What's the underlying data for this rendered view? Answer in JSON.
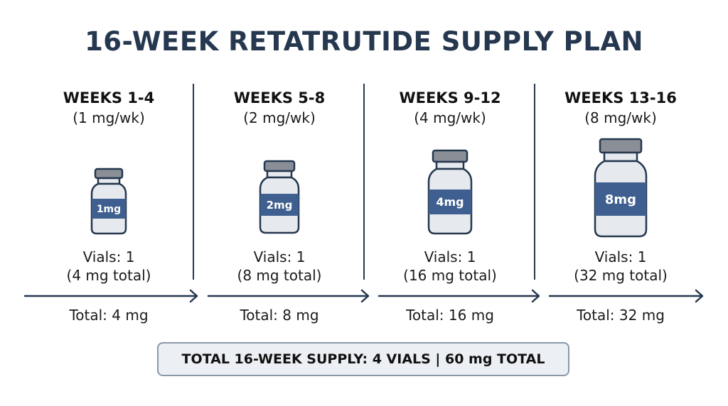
{
  "title": "16-WEEK RETATRUTIDE SUPPLY PLAN",
  "columns": [
    {
      "weeks": "WEEKS 1-4",
      "dose": "(1 mg/wk)",
      "vial_label": "1mg",
      "vials": "Vials: 1",
      "vials_total": "(4 mg total)",
      "total": "Total: 4 mg"
    },
    {
      "weeks": "WEEKS 5-8",
      "dose": "(2 mg/wk)",
      "vial_label": "2mg",
      "vials": "Vials: 1",
      "vials_total": "(8 mg total)",
      "total": "Total: 8 mg"
    },
    {
      "weeks": "WEEKS 9-12",
      "dose": "(4 mg/wk)",
      "vial_label": "4mg",
      "vials": "Vials: 1",
      "vials_total": "(16 mg total)",
      "total": "Total: 16 mg"
    },
    {
      "weeks": "WEEKS 13-16",
      "dose": "(8 mg/wk)",
      "vial_label": "8mg",
      "vials": "Vials: 1",
      "vials_total": "(32 mg total)",
      "total": "Total: 32 mg"
    }
  ],
  "summary": "TOTAL 16-WEEK SUPPLY: 4 VIALS | 60 mg TOTAL",
  "colors": {
    "navy": "#25384f",
    "label_blue": "#3e5f8f",
    "vial_glass": "#e6e9ee",
    "vial_cap": "#8a8f97",
    "summary_bg": "#eceff3",
    "summary_border": "#8b98a8"
  }
}
